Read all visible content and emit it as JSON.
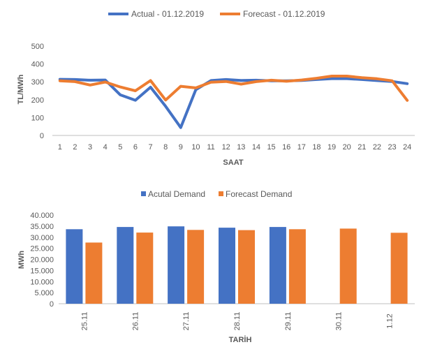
{
  "chart_data": [
    {
      "type": "line",
      "title": "",
      "xlabel": "SAAT",
      "ylabel": "TL/MWh",
      "ylim": [
        0,
        500
      ],
      "yticks": [
        "0",
        "100",
        "200",
        "300",
        "400",
        "500"
      ],
      "categories": [
        "1",
        "2",
        "3",
        "4",
        "5",
        "6",
        "7",
        "8",
        "9",
        "10",
        "11",
        "12",
        "13",
        "14",
        "15",
        "16",
        "17",
        "18",
        "19",
        "20",
        "21",
        "22",
        "23",
        "24"
      ],
      "grid": false,
      "legend_position": "top",
      "series": [
        {
          "name": "Actual - 01.12.2019",
          "color": "#4472C4",
          "values": [
            314,
            313,
            309,
            310,
            227,
            197,
            270,
            163,
            44,
            256,
            307,
            313,
            308,
            309,
            306,
            306,
            308,
            313,
            318,
            318,
            313,
            307,
            302,
            290
          ]
        },
        {
          "name": "Forecast - 01.12.2019",
          "color": "#ED7D31",
          "values": [
            306,
            301,
            282,
            299,
            271,
            250,
            307,
            198,
            275,
            266,
            298,
            302,
            287,
            301,
            309,
            303,
            310,
            320,
            332,
            332,
            323,
            317,
            306,
            196
          ]
        }
      ]
    },
    {
      "type": "bar",
      "title": "",
      "xlabel": "TARİH",
      "ylabel": "MWh",
      "ylim": [
        0,
        40000
      ],
      "yticks": [
        "0",
        "5.000",
        "10.000",
        "15.000",
        "20.000",
        "25.000",
        "30.000",
        "35.000",
        "40.000"
      ],
      "categories": [
        "25.11",
        "26.11",
        "27.11",
        "28.11",
        "29.11",
        "30.11",
        "1.12"
      ],
      "grid": false,
      "legend_position": "top",
      "series": [
        {
          "name": "Acutal Demand",
          "color": "#4472C4",
          "values": [
            33600,
            34600,
            34900,
            34300,
            34600,
            null,
            null
          ]
        },
        {
          "name": "Forecast Demand",
          "color": "#ED7D31",
          "values": [
            27600,
            32100,
            33300,
            33200,
            33600,
            33900,
            32000
          ]
        }
      ]
    }
  ]
}
